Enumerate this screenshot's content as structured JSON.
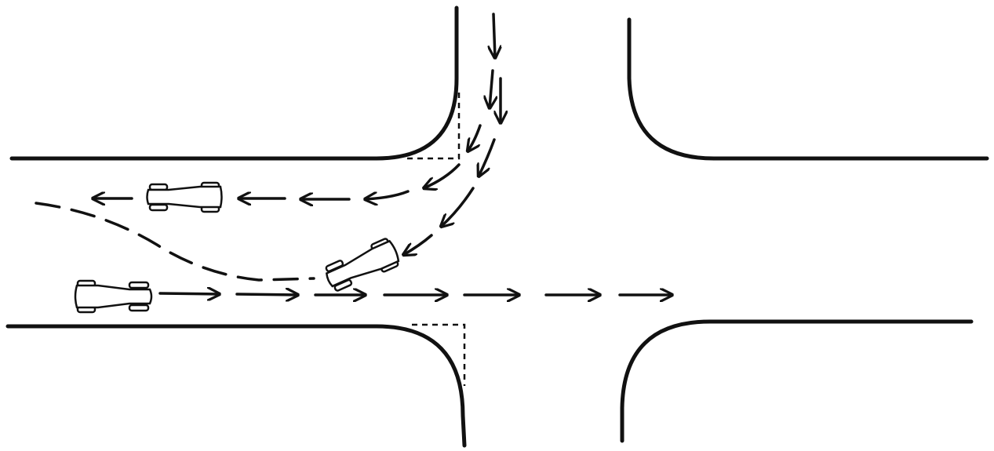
{
  "diagram": {
    "kind": "traffic intersection illustration",
    "colors": {
      "ink": "#111111",
      "paper": "#ffffff"
    },
    "elements": {
      "roads": [
        "left-road-top-edge",
        "left-road-bottom-edge",
        "right-road-top-edge",
        "right-road-bottom-edge",
        "top-road-left-edge",
        "top-road-right-edge",
        "bottom-road-left-edge",
        "bottom-road-right-edge"
      ],
      "vehicles": [
        "car-westbound",
        "car-eastbound",
        "car-turning"
      ],
      "paths": [
        "path-narrow-left-turn",
        "path-wide-left-turn",
        "path-straight-through",
        "path-swerve"
      ]
    }
  }
}
